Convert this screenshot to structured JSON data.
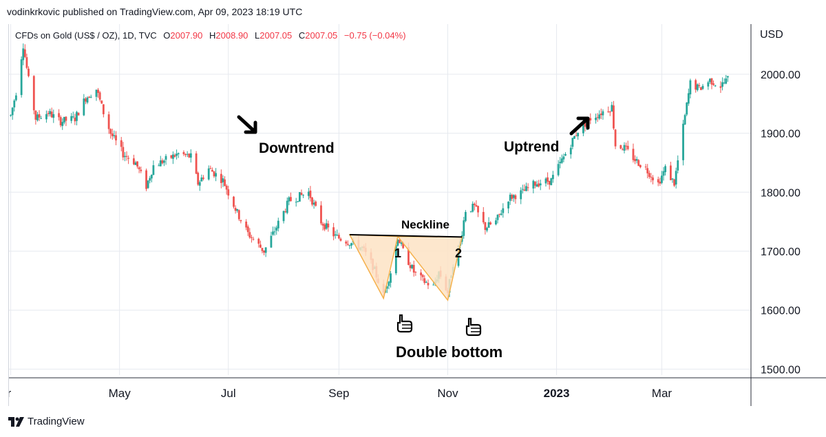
{
  "header": {
    "publish_line": "vodinkrkovic published on TradingView.com, Apr 09, 2023 18:19 UTC",
    "symbol_line": "CFDs on Gold (US$ / OZ), 1D, TVC",
    "open_label": "O",
    "open_value": "2007.90",
    "high_label": "H",
    "high_value": "2008.90",
    "low_label": "L",
    "low_value": "2007.05",
    "close_label": "C",
    "close_value": "2007.05",
    "change": "−0.75 (−0.04%)"
  },
  "currency_label": "USD",
  "footer": {
    "brand": "TradingView"
  },
  "annotations": {
    "downtrend": "Downtrend",
    "uptrend": "Uptrend",
    "neckline": "Neckline",
    "bottom_1": "1",
    "bottom_2": "2",
    "double_bottom": "Double bottom"
  },
  "colors": {
    "up": "#26a69a",
    "down": "#ef5350",
    "grid": "#e6e9ef",
    "triangle_fill": "#fde3c4",
    "triangle_stroke": "#f5b04b"
  },
  "chart_data": {
    "type": "candlestick",
    "title": "",
    "xlabel": "",
    "ylabel": "USD",
    "ylim": [
      1490,
      2085
    ],
    "y_ticks": [
      "1500.00",
      "1600.00",
      "1700.00",
      "1800.00",
      "1900.00",
      "2000.00"
    ],
    "x_ticks": [
      "ar",
      "May",
      "Jul",
      "Sep",
      "Nov",
      "2023",
      "Mar"
    ],
    "x_range": [
      "2022-03-01",
      "2023-04-09"
    ],
    "tick_dates": [
      "2022-03-01",
      "2022-05-01",
      "2022-07-01",
      "2022-09-01",
      "2022-11-01",
      "2023-01-01",
      "2023-03-01"
    ],
    "grid": true,
    "price_path": [
      [
        "2022-03-01",
        1930
      ],
      [
        "2022-03-04",
        1970
      ],
      [
        "2022-03-08",
        2050
      ],
      [
        "2022-03-11",
        1990
      ],
      [
        "2022-03-15",
        1925
      ],
      [
        "2022-03-22",
        1935
      ],
      [
        "2022-03-29",
        1920
      ],
      [
        "2022-04-06",
        1925
      ],
      [
        "2022-04-12",
        1960
      ],
      [
        "2022-04-18",
        1975
      ],
      [
        "2022-04-22",
        1935
      ],
      [
        "2022-04-26",
        1900
      ],
      [
        "2022-05-03",
        1865
      ],
      [
        "2022-05-10",
        1850
      ],
      [
        "2022-05-16",
        1810
      ],
      [
        "2022-05-20",
        1845
      ],
      [
        "2022-05-27",
        1855
      ],
      [
        "2022-06-03",
        1865
      ],
      [
        "2022-06-10",
        1860
      ],
      [
        "2022-06-14",
        1815
      ],
      [
        "2022-06-20",
        1840
      ],
      [
        "2022-06-28",
        1820
      ],
      [
        "2022-07-06",
        1765
      ],
      [
        "2022-07-12",
        1730
      ],
      [
        "2022-07-18",
        1710
      ],
      [
        "2022-07-21",
        1700
      ],
      [
        "2022-07-27",
        1735
      ],
      [
        "2022-08-04",
        1785
      ],
      [
        "2022-08-15",
        1800
      ],
      [
        "2022-08-22",
        1750
      ],
      [
        "2022-08-30",
        1725
      ],
      [
        "2022-09-07",
        1715
      ],
      [
        "2022-09-14",
        1705
      ],
      [
        "2022-09-20",
        1675
      ],
      [
        "2022-09-26",
        1625
      ],
      [
        "2022-09-30",
        1665
      ],
      [
        "2022-10-04",
        1725
      ],
      [
        "2022-10-07",
        1700
      ],
      [
        "2022-10-13",
        1665
      ],
      [
        "2022-10-18",
        1650
      ],
      [
        "2022-10-24",
        1640
      ],
      [
        "2022-10-27",
        1665
      ],
      [
        "2022-11-01",
        1630
      ],
      [
        "2022-11-04",
        1680
      ],
      [
        "2022-11-08",
        1715
      ],
      [
        "2022-11-11",
        1770
      ],
      [
        "2022-11-16",
        1775
      ],
      [
        "2022-11-22",
        1740
      ],
      [
        "2022-11-28",
        1750
      ],
      [
        "2022-12-05",
        1790
      ],
      [
        "2022-12-13",
        1800
      ],
      [
        "2022-12-20",
        1815
      ],
      [
        "2022-12-29",
        1820
      ],
      [
        "2023-01-06",
        1865
      ],
      [
        "2023-01-13",
        1905
      ],
      [
        "2023-01-20",
        1925
      ],
      [
        "2023-01-26",
        1935
      ],
      [
        "2023-02-01",
        1945
      ],
      [
        "2023-02-03",
        1880
      ],
      [
        "2023-02-08",
        1875
      ],
      [
        "2023-02-14",
        1855
      ],
      [
        "2023-02-20",
        1840
      ],
      [
        "2023-02-27",
        1815
      ],
      [
        "2023-03-03",
        1840
      ],
      [
        "2023-03-08",
        1815
      ],
      [
        "2023-03-13",
        1910
      ],
      [
        "2023-03-17",
        1985
      ],
      [
        "2023-03-22",
        1975
      ],
      [
        "2023-03-28",
        1990
      ],
      [
        "2023-04-03",
        1980
      ],
      [
        "2023-04-07",
        1992
      ]
    ]
  }
}
